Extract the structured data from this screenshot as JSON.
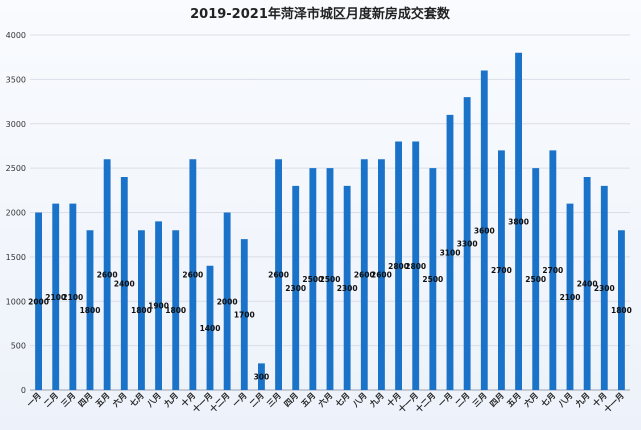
{
  "chart_data": {
    "type": "bar",
    "title": "2019-2021年菏泽市城区月度新房成交套数",
    "xlabel": "",
    "ylabel": "",
    "ylim": [
      0,
      4000
    ],
    "yticks": [
      0,
      500,
      1000,
      1500,
      2000,
      2500,
      3000,
      3500,
      4000
    ],
    "grid": true,
    "bar_color": "#1a73c8",
    "categories": [
      "一月",
      "二月",
      "三月",
      "四月",
      "五月",
      "六月",
      "七月",
      "八月",
      "九月",
      "十月",
      "十一月",
      "十二月",
      "一月",
      "二月",
      "三月",
      "四月",
      "五月",
      "六月",
      "七月",
      "八月",
      "九月",
      "十月",
      "十一月",
      "十二月",
      "一月",
      "二月",
      "三月",
      "四月",
      "五月",
      "六月",
      "七月",
      "八月",
      "九月",
      "十月",
      "十一月"
    ],
    "values": [
      2000,
      2100,
      2100,
      1800,
      2600,
      2400,
      1800,
      1900,
      1800,
      2600,
      1400,
      2000,
      1700,
      300,
      2600,
      2300,
      2500,
      2500,
      2300,
      2600,
      2600,
      2800,
      2800,
      2500,
      3100,
      3300,
      3600,
      2700,
      3800,
      2500,
      2700,
      2100,
      2400,
      2300,
      1800
    ]
  }
}
